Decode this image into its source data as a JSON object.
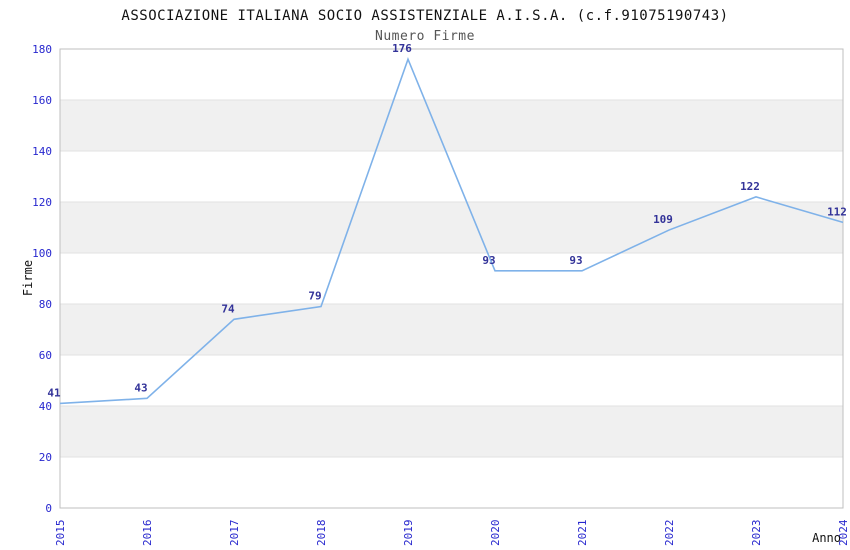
{
  "header": {
    "title": "ASSOCIAZIONE ITALIANA SOCIO ASSISTENZIALE A.I.S.A. (c.f.91075190743)",
    "subtitle": "Numero Firme"
  },
  "chart_data": {
    "type": "line",
    "title": "ASSOCIAZIONE ITALIANA SOCIO ASSISTENZIALE A.I.S.A. (c.f.91075190743)",
    "subtitle": "Numero Firme",
    "categories": [
      "2015",
      "2016",
      "2017",
      "2018",
      "2019",
      "2020",
      "2021",
      "2022",
      "2023",
      "2024"
    ],
    "values": [
      41,
      43,
      74,
      79,
      176,
      93,
      93,
      109,
      122,
      112
    ],
    "xlabel": "Anno",
    "ylabel": "Firme",
    "ylim": [
      0,
      180
    ],
    "ytick_step": 20,
    "yticks": [
      0,
      20,
      40,
      60,
      80,
      100,
      120,
      140,
      160,
      180
    ],
    "legend": "none",
    "grid": "horizontal",
    "band_fill_ranges": [
      [
        20,
        40
      ],
      [
        60,
        80
      ],
      [
        100,
        120
      ],
      [
        140,
        160
      ]
    ],
    "data_labels_visible": true
  },
  "colors": {
    "background": "#FFFFFF",
    "line": "#7FB2E9",
    "tick_label": "#2727CE",
    "data_label": "#333399",
    "band_fill": "#F0F0F0",
    "grid_line": "#E2E2E2",
    "plot_border": "#BFBFBF",
    "title_text": "#111111",
    "subtitle_text": "#555555"
  }
}
